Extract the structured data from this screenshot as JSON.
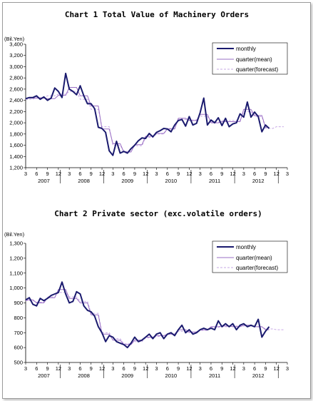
{
  "chart_data": [
    {
      "type": "line",
      "title": "Chart 1 Total Value of Machinery Orders",
      "ylabel": "(Bil.Yen)",
      "ylim": [
        1200,
        3400
      ],
      "yticks": [
        1200,
        1400,
        1600,
        1800,
        2000,
        2200,
        2400,
        2600,
        2800,
        3000,
        3200,
        3400
      ],
      "ytick_labels": [
        "1,200",
        "1,400",
        "1,600",
        "1,800",
        "2,000",
        "2,200",
        "2,400",
        "2,600",
        "2,800",
        "3,000",
        "3,200",
        "3,400"
      ],
      "x_start": "2007-03",
      "x_tick_labels": [
        "3",
        "6",
        "9",
        "12",
        "3",
        "6",
        "9",
        "12",
        "3",
        "6",
        "9",
        "12",
        "3",
        "6",
        "9",
        "12",
        "3",
        "6",
        "9",
        "12",
        "3",
        "6",
        "9",
        "12",
        "3"
      ],
      "year_labels": [
        "2007",
        "2008",
        "2009",
        "2010",
        "2011",
        "2012"
      ],
      "legend": [
        "monthly",
        "quarter(mean)",
        "quarter(forecast)"
      ],
      "series": [
        {
          "name": "monthly",
          "values": [
            2430,
            2450,
            2450,
            2480,
            2420,
            2460,
            2400,
            2440,
            2620,
            2560,
            2450,
            2880,
            2600,
            2560,
            2500,
            2660,
            2480,
            2340,
            2340,
            2250,
            1920,
            1900,
            1830,
            1500,
            1420,
            1670,
            1460,
            1490,
            1460,
            1540,
            1600,
            1680,
            1730,
            1720,
            1810,
            1750,
            1830,
            1860,
            1900,
            1890,
            1840,
            1960,
            2040,
            2060,
            1940,
            2110,
            1960,
            1990,
            2180,
            2440,
            1960,
            2050,
            2000,
            2090,
            1950,
            2080,
            1930,
            1980,
            2000,
            2160,
            2100,
            2370,
            2100,
            2190,
            2110,
            1840,
            1960,
            1900
          ]
        },
        {
          "name": "quarter(mean)",
          "values": [
            2440,
            2440,
            2440,
            2440,
            2440,
            2440,
            2430,
            2430,
            2430,
            2490,
            2490,
            2490,
            2630,
            2630,
            2630,
            2480,
            2480,
            2480,
            2300,
            2300,
            2300,
            1890,
            1890,
            1890,
            1630,
            1630,
            1630,
            1480,
            1480,
            1480,
            1610,
            1610,
            1610,
            1760,
            1760,
            1760,
            1810,
            1810,
            1810,
            1890,
            1890,
            1890,
            2080,
            2080,
            2080,
            2040,
            2040,
            2040,
            2150,
            2150,
            2150,
            2000,
            2000,
            2000,
            2020,
            2020,
            2020,
            2020,
            2020,
            2020,
            2240,
            2240,
            2240,
            2130,
            2130,
            2130,
            1920,
            1920
          ]
        },
        {
          "name": "quarter(forecast)",
          "values": [
            2420,
            2420,
            2420,
            2450,
            2450,
            2450,
            2480,
            2480,
            2480,
            2510,
            2510,
            2510,
            2560,
            2560,
            2560,
            2420,
            2420,
            2420,
            2240,
            2240,
            2240,
            1930,
            1930,
            1930,
            1600,
            1600,
            1600,
            1490,
            1490,
            1490,
            1590,
            1590,
            1590,
            1740,
            1740,
            1740,
            1800,
            1800,
            1800,
            1900,
            1900,
            1900,
            2060,
            2060,
            2060,
            2050,
            2050,
            2050,
            2120,
            2120,
            2120,
            2010,
            2010,
            2010,
            2040,
            2040,
            2040,
            2040,
            2040,
            2040,
            2200,
            2200,
            2200,
            2110,
            2110,
            2110,
            1900,
            1900,
            1900,
            1930,
            1930,
            1930
          ]
        }
      ]
    },
    {
      "type": "line",
      "title": "Chart 2 Private sector (exc.volatile orders)",
      "ylabel": "(Bil.Yen)",
      "ylim": [
        500,
        1300
      ],
      "yticks": [
        500,
        600,
        700,
        800,
        900,
        1000,
        1100,
        1200,
        1300
      ],
      "ytick_labels": [
        "500",
        "600",
        "700",
        "800",
        "900",
        "1,000",
        "1,100",
        "1,200",
        "1,300"
      ],
      "x_start": "2007-03",
      "x_tick_labels": [
        "3",
        "6",
        "9",
        "12",
        "3",
        "6",
        "9",
        "12",
        "3",
        "6",
        "9",
        "12",
        "3",
        "6",
        "9",
        "12",
        "3",
        "6",
        "9",
        "12",
        "3",
        "6",
        "9",
        "12",
        "3"
      ],
      "year_labels": [
        "2007",
        "2008",
        "2009",
        "2010",
        "2011",
        "2012"
      ],
      "legend": [
        "monthly",
        "quarter(mean)",
        "quarter(forecast)"
      ],
      "series": [
        {
          "name": "monthly",
          "values": [
            920,
            935,
            890,
            880,
            930,
            915,
            930,
            950,
            960,
            970,
            1040,
            960,
            900,
            910,
            975,
            960,
            880,
            850,
            840,
            810,
            740,
            700,
            640,
            680,
            670,
            640,
            630,
            620,
            600,
            630,
            670,
            640,
            650,
            670,
            690,
            660,
            690,
            700,
            660,
            690,
            700,
            680,
            720,
            750,
            700,
            720,
            690,
            700,
            720,
            730,
            720,
            730,
            720,
            780,
            740,
            760,
            740,
            760,
            720,
            750,
            760,
            740,
            750,
            740,
            790,
            670,
            710,
            740
          ]
        },
        {
          "name": "quarter(mean)",
          "values": [
            920,
            920,
            920,
            900,
            900,
            900,
            935,
            935,
            935,
            990,
            990,
            990,
            930,
            930,
            930,
            900,
            900,
            900,
            820,
            820,
            820,
            690,
            690,
            690,
            650,
            650,
            650,
            620,
            620,
            620,
            650,
            650,
            650,
            670,
            670,
            670,
            680,
            680,
            680,
            690,
            690,
            690,
            720,
            720,
            720,
            705,
            705,
            705,
            720,
            720,
            720,
            740,
            740,
            740,
            745,
            745,
            745,
            740,
            740,
            740,
            750,
            750,
            750,
            740,
            740,
            740,
            720,
            720
          ]
        },
        {
          "name": "quarter(forecast)",
          "values": [
            915,
            915,
            915,
            905,
            905,
            905,
            940,
            940,
            940,
            970,
            970,
            970,
            940,
            940,
            940,
            910,
            910,
            910,
            830,
            830,
            830,
            700,
            700,
            700,
            660,
            660,
            660,
            625,
            625,
            625,
            640,
            640,
            640,
            665,
            665,
            665,
            675,
            675,
            675,
            690,
            690,
            690,
            710,
            710,
            710,
            700,
            700,
            700,
            715,
            715,
            715,
            735,
            735,
            735,
            740,
            740,
            740,
            745,
            745,
            745,
            745,
            745,
            745,
            740,
            740,
            740,
            725,
            725,
            725,
            720,
            720,
            720
          ]
        }
      ]
    }
  ]
}
